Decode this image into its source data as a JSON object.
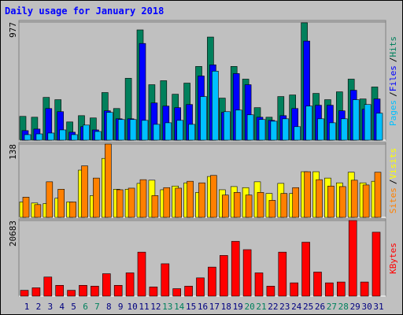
{
  "chart_data": [
    {
      "type": "bar",
      "title": "Daily usage for January 2018",
      "ylim": [
        0,
        977
      ],
      "yticks": [
        977
      ],
      "legend_separator": "/",
      "series": [
        {
          "name": "Hits",
          "color": "#00805c",
          "values": [
            197,
            190,
            354,
            335,
            151,
            203,
            184,
            394,
            262,
            512,
            912,
            459,
            492,
            380,
            472,
            610,
            853,
            348,
            610,
            505,
            269,
            190,
            361,
            374,
            971,
            387,
            335,
            400,
            505,
            341,
            440
          ]
        },
        {
          "name": "Files",
          "color": "#0000ff",
          "values": [
            79,
            92,
            262,
            236,
            66,
            112,
            85,
            243,
            177,
            177,
            800,
            308,
            282,
            269,
            295,
            531,
            623,
            230,
            551,
            459,
            190,
            164,
            203,
            262,
            820,
            289,
            289,
            243,
            413,
            256,
            341
          ]
        },
        {
          "name": "Pages",
          "color": "#00c0ff",
          "values": [
            46,
            52,
            59,
            85,
            46,
            125,
            72,
            230,
            171,
            171,
            164,
            131,
            144,
            164,
            131,
            361,
            571,
            236,
            249,
            210,
            171,
            157,
            177,
            112,
            282,
            177,
            144,
            177,
            335,
            295,
            223
          ]
        }
      ]
    },
    {
      "type": "bar",
      "ylim": [
        0,
        138
      ],
      "yticks": [
        138
      ],
      "legend_separator": "/",
      "series": [
        {
          "name": "Visits",
          "color": "#ffff00",
          "values": [
            29,
            27,
            26,
            36,
            29,
            89,
            41,
            111,
            53,
            53,
            64,
            70,
            52,
            59,
            65,
            47,
            77,
            52,
            58,
            56,
            67,
            45,
            64,
            45,
            86,
            86,
            74,
            65,
            85,
            65,
            68
          ]
        },
        {
          "name": "Sites",
          "color": "#ff8000",
          "values": [
            38,
            24,
            67,
            53,
            29,
            97,
            74,
            138,
            52,
            55,
            71,
            41,
            56,
            55,
            68,
            65,
            79,
            42,
            47,
            42,
            47,
            32,
            45,
            56,
            86,
            71,
            59,
            58,
            70,
            61,
            85
          ]
        }
      ]
    },
    {
      "type": "bar",
      "ylim": [
        0,
        20683
      ],
      "yticks": [
        20683
      ],
      "categories": [
        "1",
        "2",
        "3",
        "4",
        "5",
        "6",
        "7",
        "8",
        "9",
        "10",
        "11",
        "12",
        "13",
        "14",
        "15",
        "16",
        "17",
        "18",
        "19",
        "20",
        "21",
        "22",
        "23",
        "24",
        "25",
        "26",
        "27",
        "28",
        "29",
        "30",
        "31"
      ],
      "category_colors": [
        "#000080",
        "#000080",
        "#000080",
        "#000080",
        "#000080",
        "#00805c",
        "#00805c",
        "#000080",
        "#000080",
        "#000080",
        "#000080",
        "#000080",
        "#00805c",
        "#00805c",
        "#000080",
        "#000080",
        "#000080",
        "#000080",
        "#000080",
        "#00805c",
        "#00805c",
        "#000080",
        "#000080",
        "#000080",
        "#000080",
        "#000080",
        "#00805c",
        "#00805c",
        "#000080",
        "#000080",
        "#000080"
      ],
      "series": [
        {
          "name": "KBytes",
          "color": "#ff0000",
          "values": [
            1590,
            2270,
            5220,
            2950,
            1590,
            2950,
            2720,
            6130,
            2950,
            6360,
            12030,
            2500,
            8850,
            2040,
            2720,
            4990,
            7940,
            11120,
            14980,
            12710,
            6360,
            2720,
            12030,
            3630,
            14750,
            6580,
            3630,
            3860,
            20683,
            3860,
            17480
          ]
        }
      ]
    }
  ]
}
